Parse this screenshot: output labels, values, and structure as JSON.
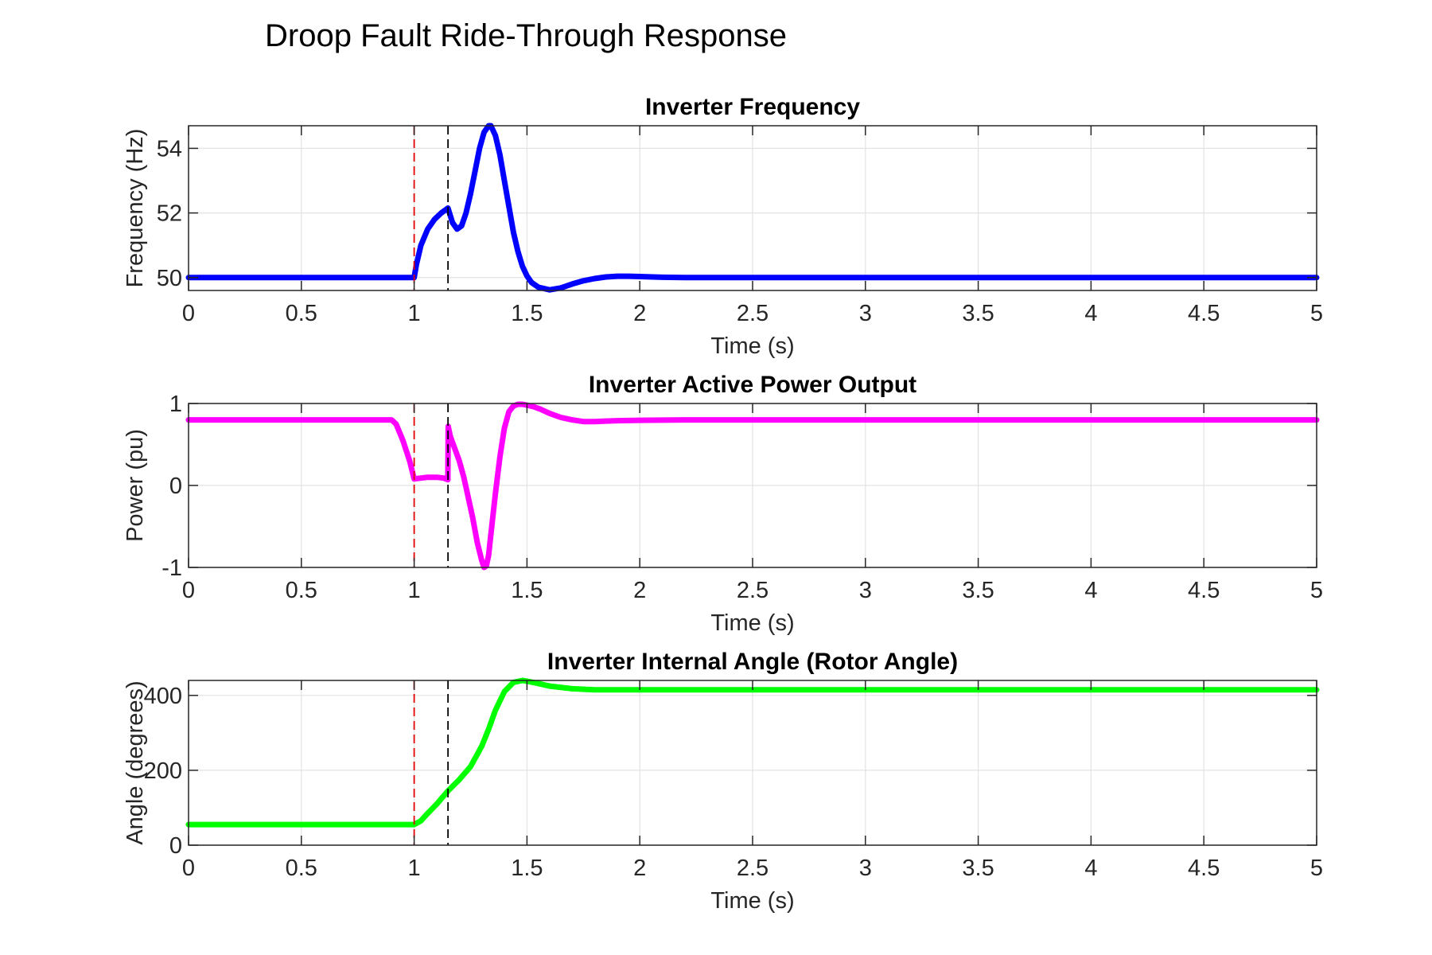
{
  "figure_title": "Droop Fault Ride-Through Response",
  "colors": {
    "frequency": "#0000ff",
    "power": "#ff00ff",
    "angle": "#00ff00",
    "fault_line": "#e00000",
    "clear_line": "#000000",
    "grid": "#e3e3e3",
    "axes": "#262626"
  },
  "chart_data": [
    {
      "type": "line",
      "title": "Inverter Frequency",
      "xlabel": "Time (s)",
      "ylabel": "Frequency (Hz)",
      "xlim": [
        0,
        5
      ],
      "ylim": [
        49.6,
        54.7
      ],
      "xticks": [
        0,
        0.5,
        1,
        1.5,
        2,
        2.5,
        3,
        3.5,
        4,
        4.5,
        5
      ],
      "xtick_labels": [
        "0",
        "0.5",
        "1",
        "1.5",
        "2",
        "2.5",
        "3",
        "3.5",
        "4",
        "4.5",
        "5"
      ],
      "yticks": [
        50,
        52,
        54
      ],
      "ytick_labels": [
        "50",
        "52",
        "54"
      ],
      "grid": true,
      "vlines": [
        {
          "x": 1.0,
          "color": "#e00000"
        },
        {
          "x": 1.15,
          "color": "#000000"
        }
      ],
      "series": [
        {
          "color": "#0000ff",
          "x": [
            0,
            0.99,
            1.0,
            1.01,
            1.03,
            1.06,
            1.09,
            1.12,
            1.15,
            1.17,
            1.19,
            1.21,
            1.23,
            1.25,
            1.27,
            1.29,
            1.31,
            1.33,
            1.34,
            1.36,
            1.38,
            1.4,
            1.42,
            1.44,
            1.46,
            1.48,
            1.5,
            1.52,
            1.55,
            1.6,
            1.65,
            1.7,
            1.75,
            1.8,
            1.85,
            1.9,
            1.95,
            2.0,
            2.1,
            2.2,
            2.3,
            2.5,
            3,
            4,
            5
          ],
          "y": [
            50,
            50,
            50,
            50.4,
            51.0,
            51.5,
            51.8,
            52.0,
            52.15,
            51.7,
            51.5,
            51.6,
            52.0,
            52.6,
            53.3,
            54.0,
            54.5,
            54.7,
            54.7,
            54.4,
            53.8,
            53.0,
            52.2,
            51.4,
            50.8,
            50.35,
            50.05,
            49.85,
            49.7,
            49.62,
            49.68,
            49.8,
            49.9,
            49.97,
            50.02,
            50.04,
            50.04,
            50.03,
            50.01,
            50.0,
            50.0,
            50.0,
            50.0,
            50.0,
            50.0
          ]
        }
      ]
    },
    {
      "type": "line",
      "title": "Inverter Active Power Output",
      "xlabel": "Time (s)",
      "ylabel": "Power (pu)",
      "xlim": [
        0,
        5
      ],
      "ylim": [
        -1,
        1
      ],
      "xticks": [
        0,
        0.5,
        1,
        1.5,
        2,
        2.5,
        3,
        3.5,
        4,
        4.5,
        5
      ],
      "xtick_labels": [
        "0",
        "0.5",
        "1",
        "1.5",
        "2",
        "2.5",
        "3",
        "3.5",
        "4",
        "4.5",
        "5"
      ],
      "yticks": [
        -1,
        0,
        1
      ],
      "ytick_labels": [
        "-1",
        "0",
        "1"
      ],
      "grid": true,
      "vlines": [
        {
          "x": 1.0,
          "color": "#e00000"
        },
        {
          "x": 1.15,
          "color": "#000000"
        }
      ],
      "series": [
        {
          "color": "#ff00ff",
          "x": [
            0,
            0.9,
            0.92,
            0.95,
            0.98,
            1.0,
            1.03,
            1.06,
            1.1,
            1.13,
            1.149,
            1.151,
            1.16,
            1.18,
            1.2,
            1.22,
            1.24,
            1.26,
            1.28,
            1.3,
            1.31,
            1.32,
            1.33,
            1.34,
            1.36,
            1.38,
            1.4,
            1.42,
            1.44,
            1.46,
            1.48,
            1.5,
            1.53,
            1.56,
            1.6,
            1.65,
            1.7,
            1.75,
            1.8,
            1.85,
            1.9,
            2.0,
            2.2,
            3,
            4,
            5
          ],
          "y": [
            0.8,
            0.8,
            0.75,
            0.55,
            0.3,
            0.08,
            0.09,
            0.1,
            0.1,
            0.09,
            0.07,
            0.72,
            0.6,
            0.45,
            0.3,
            0.1,
            -0.15,
            -0.4,
            -0.7,
            -0.92,
            -1.0,
            -0.98,
            -0.85,
            -0.6,
            -0.1,
            0.35,
            0.7,
            0.9,
            0.97,
            0.99,
            0.99,
            0.98,
            0.96,
            0.93,
            0.88,
            0.83,
            0.8,
            0.78,
            0.78,
            0.785,
            0.79,
            0.795,
            0.8,
            0.8,
            0.8,
            0.8
          ]
        }
      ]
    },
    {
      "type": "line",
      "title": "Inverter Internal Angle (Rotor Angle)",
      "xlabel": "Time (s)",
      "ylabel": "Angle (degrees)",
      "xlim": [
        0,
        5
      ],
      "ylim": [
        0,
        440
      ],
      "xticks": [
        0,
        0.5,
        1,
        1.5,
        2,
        2.5,
        3,
        3.5,
        4,
        4.5,
        5
      ],
      "xtick_labels": [
        "0",
        "0.5",
        "1",
        "1.5",
        "2",
        "2.5",
        "3",
        "3.5",
        "4",
        "4.5",
        "5"
      ],
      "yticks": [
        0,
        200,
        400
      ],
      "ytick_labels": [
        "0",
        "200",
        "400"
      ],
      "grid": true,
      "vlines": [
        {
          "x": 1.0,
          "color": "#e00000"
        },
        {
          "x": 1.15,
          "color": "#000000"
        }
      ],
      "series": [
        {
          "color": "#00ff00",
          "x": [
            0,
            1.0,
            1.03,
            1.06,
            1.1,
            1.15,
            1.2,
            1.25,
            1.3,
            1.33,
            1.36,
            1.4,
            1.44,
            1.48,
            1.5,
            1.55,
            1.6,
            1.7,
            1.8,
            2.0,
            2.5,
            3,
            4,
            5
          ],
          "y": [
            55,
            55,
            65,
            85,
            110,
            145,
            175,
            210,
            265,
            310,
            360,
            410,
            435,
            440,
            438,
            432,
            425,
            418,
            415,
            415,
            415,
            415,
            415,
            415
          ]
        }
      ]
    }
  ]
}
